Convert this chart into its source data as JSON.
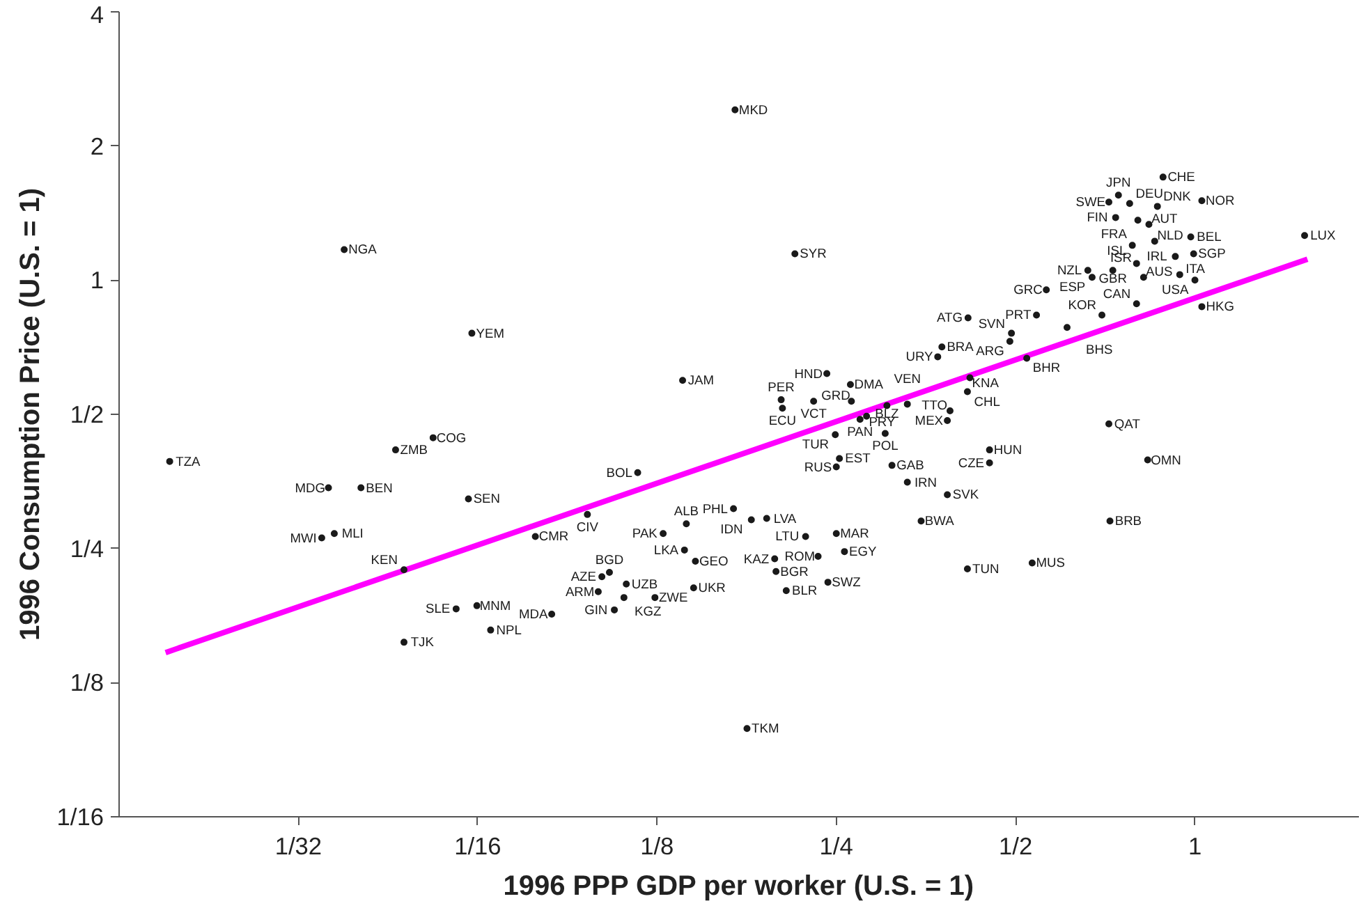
{
  "chart_data": {
    "type": "scatter",
    "xlabel": "1996 PPP GDP per worker (U.S. = 1)",
    "ylabel": "1996 Consumption Price (U.S. = 1)",
    "log": "xy",
    "xlim": [
      0.015625,
      1.885
    ],
    "ylim": [
      0.0625,
      4
    ],
    "xticks": [
      {
        "value": 0.03125,
        "label": "1/32"
      },
      {
        "value": 0.0625,
        "label": "1/16"
      },
      {
        "value": 0.125,
        "label": "1/8"
      },
      {
        "value": 0.25,
        "label": "1/4"
      },
      {
        "value": 0.5,
        "label": "1/2"
      },
      1
    ],
    "yticks": [
      {
        "value": 0.0625,
        "label": "1/16"
      },
      {
        "value": 0.125,
        "label": "1/8"
      },
      {
        "value": 0.25,
        "label": "1/4"
      },
      {
        "value": 0.5,
        "label": "1/2"
      },
      1,
      2,
      4
    ],
    "series": [
      {
        "marker": "circle",
        "color": "#1a1a1a",
        "value_labels": [
          "MKD",
          "NGA",
          "SYR",
          "LUX",
          "CHE",
          "JPN",
          "SWE",
          "DEU",
          "DNK",
          "NOR",
          "FIN",
          "FRA",
          "AUT",
          "ISL",
          "NLD",
          "BEL",
          "IRL",
          "SGP",
          "NZL",
          "GBR",
          "ESP",
          "ISR",
          "AUS",
          "ITA",
          "USA",
          "GRC",
          "CAN",
          "HKG",
          "KOR",
          "PRT",
          "BHS",
          "ATG",
          "SVN",
          "ARG",
          "BRA",
          "URY",
          "BHR",
          "KNA",
          "CHL",
          "TTO",
          "MEX",
          "VEN",
          "BLZ",
          "PRY",
          "PAN",
          "POL",
          "TUR",
          "HND",
          "DMA",
          "PER",
          "ECU",
          "VCT",
          "GRD",
          "JAM",
          "EST",
          "RUS",
          "GAB",
          "LVA",
          "LTU",
          "IRN",
          "SVK",
          "HUN",
          "CZE",
          "QAT",
          "OMN",
          "BRB",
          "BWA",
          "MUS",
          "TUN",
          "BOL",
          "TZA",
          "ZMB",
          "COG",
          "MDG",
          "BEN",
          "SEN",
          "MWI",
          "MLI",
          "CIV",
          "CMR",
          "KEN",
          "PHL",
          "IDN",
          "PAK",
          "ALB",
          "MAR",
          "EGY",
          "LKA",
          "GEO",
          "KAZ",
          "ROM",
          "BGR",
          "BLR",
          "SWZ",
          "UKR",
          "AZE",
          "BGD",
          "UZB",
          "ARM",
          "KGZ",
          "ZWE",
          "GIN",
          "MDA",
          "SLE",
          "MNM",
          "NPL",
          "TJK",
          "TKM",
          "YEM"
        ],
        "x": [
          0.169,
          0.0373,
          0.213,
          1.528,
          0.884,
          0.744,
          0.717,
          0.777,
          0.865,
          1.027,
          0.736,
          0.802,
          0.837,
          0.785,
          0.856,
          0.984,
          0.927,
          0.995,
          0.661,
          0.728,
          0.672,
          0.798,
          0.82,
          0.943,
          1,
          0.563,
          0.798,
          1.027,
          0.698,
          0.542,
          0.61,
          0.416,
          0.492,
          0.489,
          0.376,
          0.37,
          0.522,
          0.419,
          0.415,
          0.388,
          0.384,
          0.329,
          0.304,
          0.281,
          0.274,
          0.302,
          0.249,
          0.241,
          0.264,
          0.202,
          0.203,
          0.229,
          0.265,
          0.138,
          0.253,
          0.25,
          0.31,
          0.191,
          0.222,
          0.329,
          0.384,
          0.452,
          0.452,
          0.717,
          0.833,
          0.72,
          0.347,
          0.533,
          0.415,
          0.116,
          0.019,
          0.0455,
          0.0526,
          0.0351,
          0.0398,
          0.0603,
          0.0342,
          0.0359,
          0.0955,
          0.0781,
          0.047,
          0.168,
          0.18,
          0.128,
          0.14,
          0.25,
          0.258,
          0.139,
          0.145,
          0.197,
          0.233,
          0.198,
          0.206,
          0.242,
          0.144,
          0.101,
          0.104,
          0.111,
          0.0996,
          0.11,
          0.124,
          0.106,
          0.0832,
          0.0575,
          0.0623,
          0.0657,
          0.047,
          0.177,
          0.0611
        ],
        "values": [
          2.41,
          1.171,
          1.146,
          1.259,
          1.703,
          1.551,
          1.497,
          1.486,
          1.464,
          1.507,
          1.382,
          1.363,
          1.334,
          1.197,
          1.223,
          1.25,
          1.13,
          1.146,
          1.052,
          1.052,
          1.015,
          1.09,
          1.015,
          1.029,
          1,
          0.951,
          0.885,
          0.872,
          0.835,
          0.835,
          0.783,
          0.823,
          0.76,
          0.729,
          0.708,
          0.673,
          0.668,
          0.604,
          0.562,
          0.509,
          0.484,
          0.527,
          0.523,
          0.495,
          0.487,
          0.453,
          0.45,
          0.617,
          0.583,
          0.539,
          0.516,
          0.535,
          0.535,
          0.596,
          0.398,
          0.381,
          0.384,
          0.292,
          0.266,
          0.352,
          0.33,
          0.416,
          0.389,
          0.476,
          0.395,
          0.288,
          0.288,
          0.232,
          0.225,
          0.37,
          0.392,
          0.416,
          0.443,
          0.342,
          0.342,
          0.323,
          0.264,
          0.27,
          0.298,
          0.266,
          0.224,
          0.307,
          0.29,
          0.27,
          0.284,
          0.27,
          0.246,
          0.248,
          0.234,
          0.237,
          0.24,
          0.222,
          0.201,
          0.21,
          0.204,
          0.216,
          0.221,
          0.208,
          0.2,
          0.194,
          0.194,
          0.182,
          0.178,
          0.183,
          0.186,
          0.164,
          0.154,
          0.0986,
          0.76
        ]
      },
      {
        "type": "line",
        "color": "#ff00ff",
        "x": [
          0.0187,
          1.545
        ],
        "values": [
          0.146,
          1.114
        ]
      }
    ]
  }
}
